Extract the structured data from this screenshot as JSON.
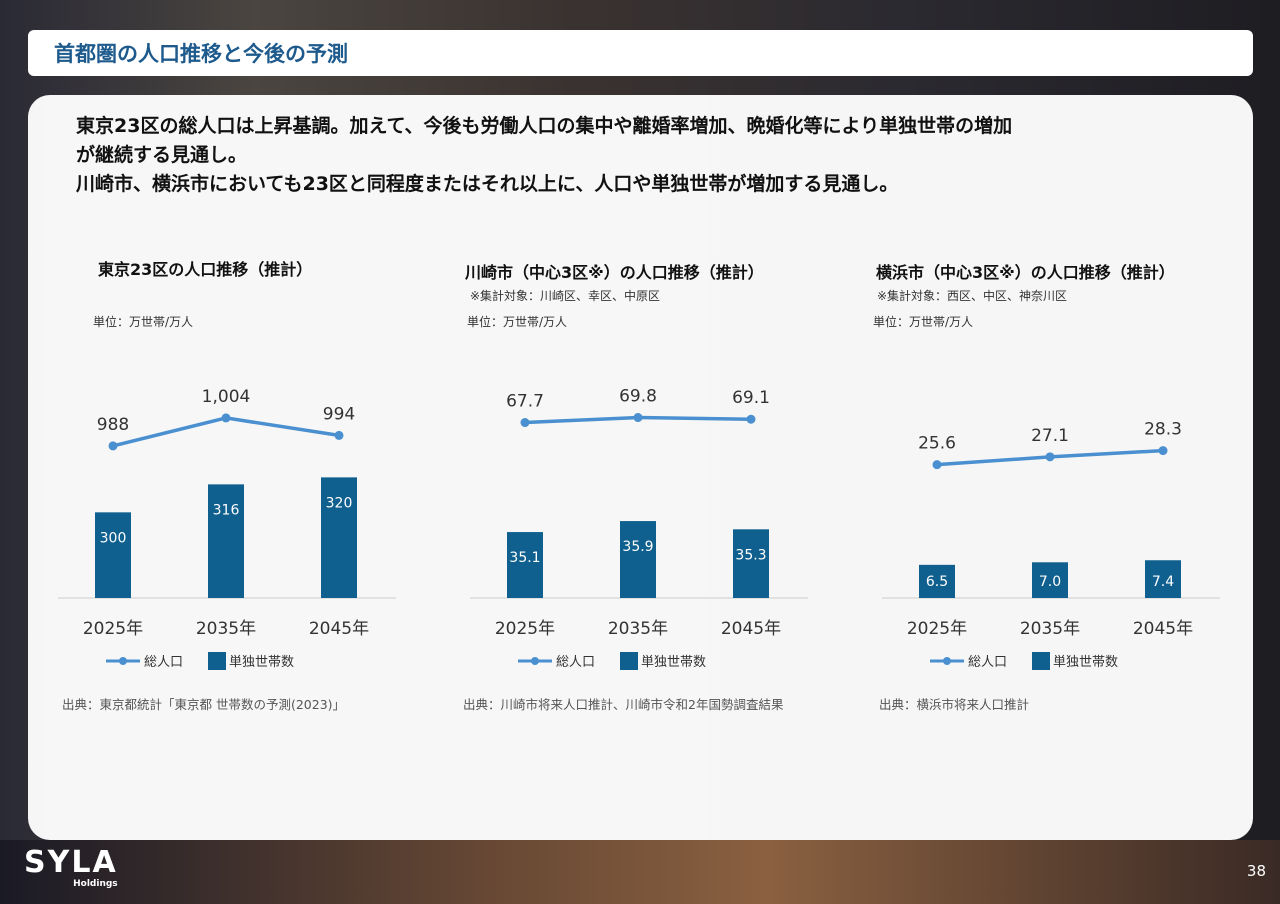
{
  "title": "首都圏の人口推移と今後の予測",
  "lead": [
    "東京23区の総人口は上昇基調。加えて、今後も労働人口の集中や離婚率増加、晩婚化等により単独世帯の増加",
    "が継続する見通し。",
    "川崎市、横浜市においても23区と同程度またはそれ以上に、人口や単独世帯が増加する見通し。"
  ],
  "logo": {
    "name": "SYLA",
    "sub": "Holdings"
  },
  "page_number": "38",
  "colors": {
    "bar": "#0f5f8f",
    "line": "#4a90d0",
    "title": "#1e5a8c"
  },
  "chart_data": [
    {
      "type": "bar+line",
      "title": "東京23区の人口推移（推計）",
      "note": "",
      "unit": "単位：万世帯/万人",
      "categories": [
        "2025年",
        "2035年",
        "2045年"
      ],
      "series": [
        {
          "name": "総人口",
          "kind": "line",
          "values": [
            988,
            1004,
            994
          ],
          "labels": [
            "988",
            "1,004",
            "994"
          ]
        },
        {
          "name": "単独世帯数",
          "kind": "bar",
          "values": [
            300,
            316,
            320
          ],
          "labels": [
            "300",
            "316",
            "320"
          ]
        }
      ],
      "bar_ylim": [
        251,
        394
      ],
      "line_ylim": [
        901,
        1044
      ],
      "source": "出典：東京都統計「東京都 世帯数の予測(2023)」"
    },
    {
      "type": "bar+line",
      "title": "川崎市（中心3区※）の人口推移（推計）",
      "note": "※集計対象：川崎区、幸区、中原区",
      "unit": "単位：万世帯/万人",
      "categories": [
        "2025年",
        "2035年",
        "2045年"
      ],
      "series": [
        {
          "name": "総人口",
          "kind": "line",
          "values": [
            67.7,
            69.8,
            69.1
          ],
          "labels": [
            "67.7",
            "69.8",
            "69.1"
          ]
        },
        {
          "name": "単独世帯数",
          "kind": "bar",
          "values": [
            35.1,
            35.9,
            35.3
          ],
          "labels": [
            "35.1",
            "35.9",
            "35.3"
          ]
        }
      ],
      "bar_ylim": [
        30.3,
        48.5
      ],
      "line_ylim": [
        -6,
        99
      ],
      "source": "出典：川崎市将来人口推計、川崎市令和2年国勢調査結果"
    },
    {
      "type": "bar+line",
      "title": "横浜市（中心3区※）の人口推移（推計）",
      "note": "※集計対象：西区、中区、神奈川区",
      "unit": "単位：万世帯/万人",
      "categories": [
        "2025年",
        "2035年",
        "2045年"
      ],
      "series": [
        {
          "name": "総人口",
          "kind": "line",
          "values": [
            25.6,
            27.1,
            28.3
          ],
          "labels": [
            "25.6",
            "27.1",
            "28.3"
          ]
        },
        {
          "name": "単独世帯数",
          "kind": "bar",
          "values": [
            6.5,
            7.0,
            7.4
          ],
          "labels": [
            "6.5",
            "7.0",
            "7.4"
          ]
        }
      ],
      "bar_ylim": [
        0,
        49
      ],
      "line_ylim": [
        0,
        48
      ],
      "source": "出典：横浜市将来人口推計"
    }
  ]
}
